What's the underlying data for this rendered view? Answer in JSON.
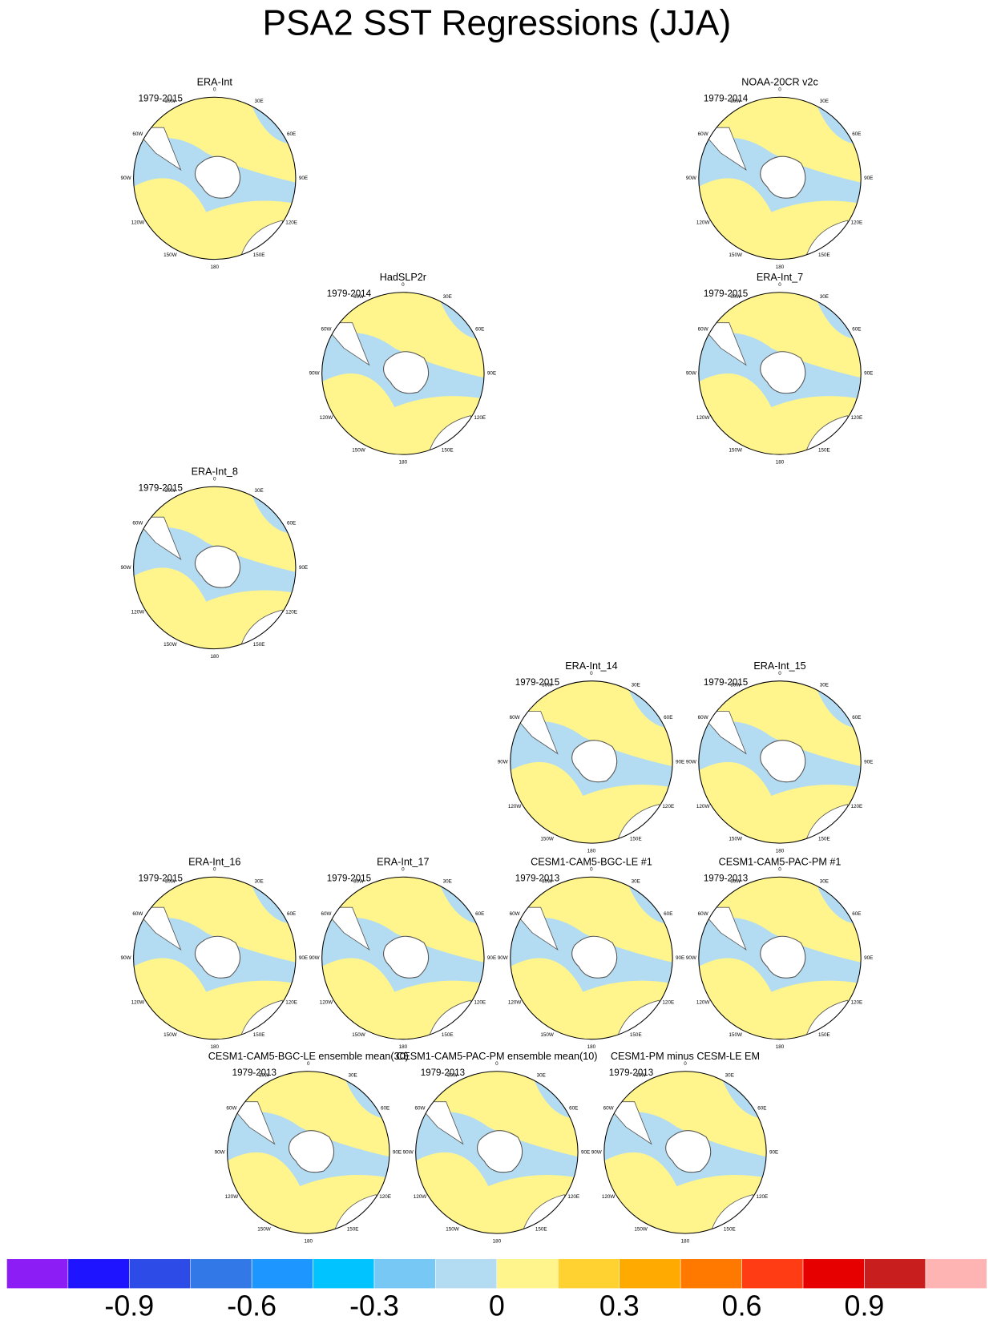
{
  "title": "PSA2 SST Regressions (JJA)",
  "lon_labels": [
    "0",
    "30E",
    "60E",
    "90E",
    "120E",
    "150E",
    "180",
    "150W",
    "120W",
    "90W",
    "60W",
    "30W"
  ],
  "panels": [
    {
      "title": "ERA-Int",
      "period": "1979-2015"
    },
    {
      "title": "NOAA-20CR v2c",
      "period": "1979-2014"
    },
    {
      "title": "HadSLP2r",
      "period": "1979-2014"
    },
    {
      "title": "ERA-Int_7",
      "period": "1979-2015"
    },
    {
      "title": "ERA-Int_8",
      "period": "1979-2015"
    },
    {
      "title": "ERA-Int_14",
      "period": "1979-2015"
    },
    {
      "title": "ERA-Int_15",
      "period": "1979-2015"
    },
    {
      "title": "ERA-Int_16",
      "period": "1979-2015"
    },
    {
      "title": "ERA-Int_17",
      "period": "1979-2015"
    },
    {
      "title": "CESM1-CAM5-BGC-LE #1",
      "period": "1979-2013"
    },
    {
      "title": "CESM1-CAM5-PAC-PM #1",
      "period": "1979-2013"
    },
    {
      "title": "CESM1-CAM5-BGC-LE ensemble mean(30)",
      "period": "1979-2013"
    },
    {
      "title": "CESM1-CAM5-PAC-PM ensemble mean(10)",
      "period": "1979-2013"
    },
    {
      "title": "CESM1-PM minus CESM-LE EM",
      "period": "1979-2013"
    }
  ],
  "colorbar": {
    "xlim": [
      -1.2,
      1.2
    ],
    "colors": [
      "#8c1ef5",
      "#1e14ff",
      "#2d4be6",
      "#3278e6",
      "#1e96ff",
      "#00c3ff",
      "#78c8f5",
      "#b3dcf2",
      "#fff58c",
      "#ffd232",
      "#ffaa00",
      "#ff7800",
      "#ff3c14",
      "#e60000",
      "#c81e1e",
      "#ffb4b4"
    ],
    "ticks": [
      -0.9,
      -0.6,
      -0.3,
      0,
      0.3,
      0.6,
      0.9
    ]
  }
}
